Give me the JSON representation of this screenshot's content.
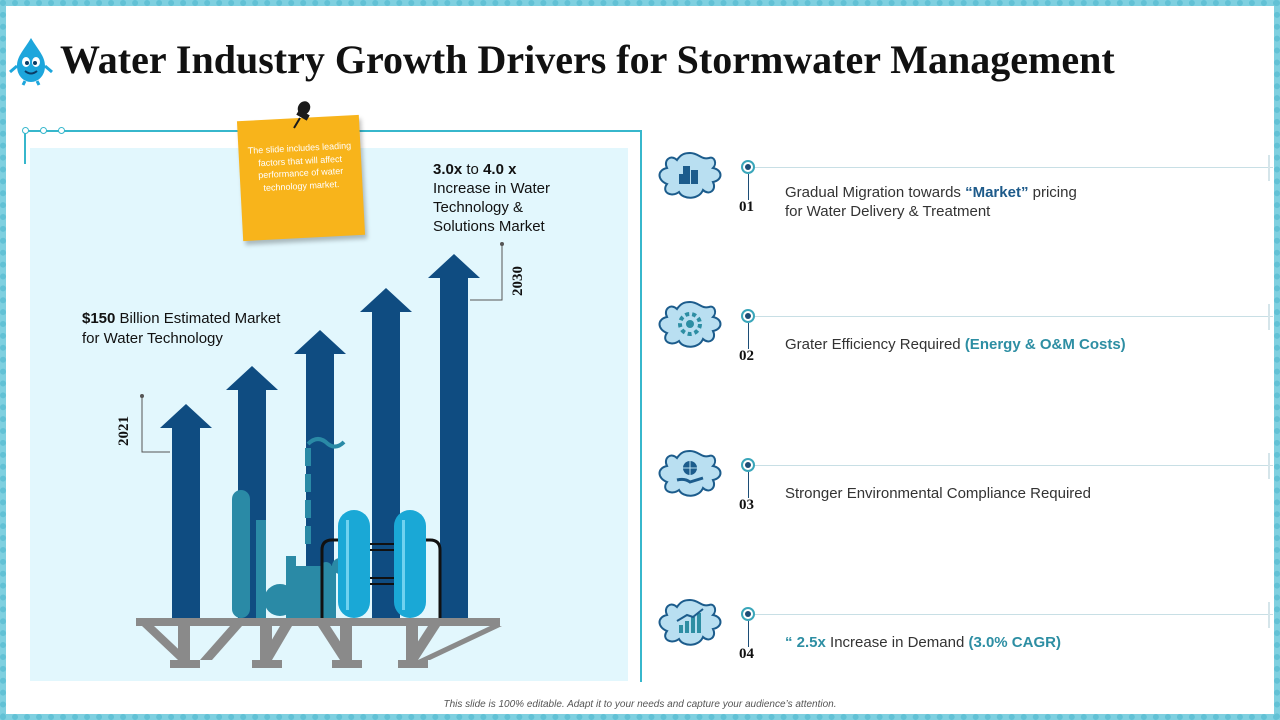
{
  "header": {
    "title": "Water Industry Growth Drivers for Stormwater Management"
  },
  "sticky_note": {
    "text": "The slide includes leading factors that will affect performance of water technology market."
  },
  "left_panel": {
    "start_note": {
      "highlight": "$150",
      "text": " Billion Estimated Market for Water Technology"
    },
    "end_note": {
      "highlight_from": "3.0x",
      "to_word": " to ",
      "highlight_to": "4.0 x",
      "text": "Increase  in Water Technology  &  Solutions Market"
    },
    "start_year": "2021",
    "end_year": "2030"
  },
  "drivers": [
    {
      "number": "01",
      "icon": "building-splash-icon",
      "text_before": "Gradual Migration towards ",
      "accent": "“Market”",
      "text_after": " pricing",
      "text_line2": "for Water Delivery & Treatment"
    },
    {
      "number": "02",
      "icon": "gear-splash-icon",
      "text_before": "Grater Efficiency Required ",
      "accent": "(Energy & O&M Costs)"
    },
    {
      "number": "03",
      "icon": "globe-hand-splash-icon",
      "text_before": "Stronger Environmental  Compliance Required"
    },
    {
      "number": "04",
      "icon": "growth-chart-splash-icon",
      "prefix_accent": "“ 2.5x",
      "text_before": " Increase  in Demand ",
      "accent": "(3.0% CAGR)"
    }
  ],
  "footer": {
    "text": "This slide is 100% editable. Adapt it to your needs and capture your audience’s attention."
  },
  "colors": {
    "arrow": "#0f4c81",
    "frame": "#37b7cc",
    "panel": "#e2f7fd",
    "sticky": "#f8b41b",
    "tank": "#1aa8d6",
    "platform": "#8a8a8a"
  }
}
